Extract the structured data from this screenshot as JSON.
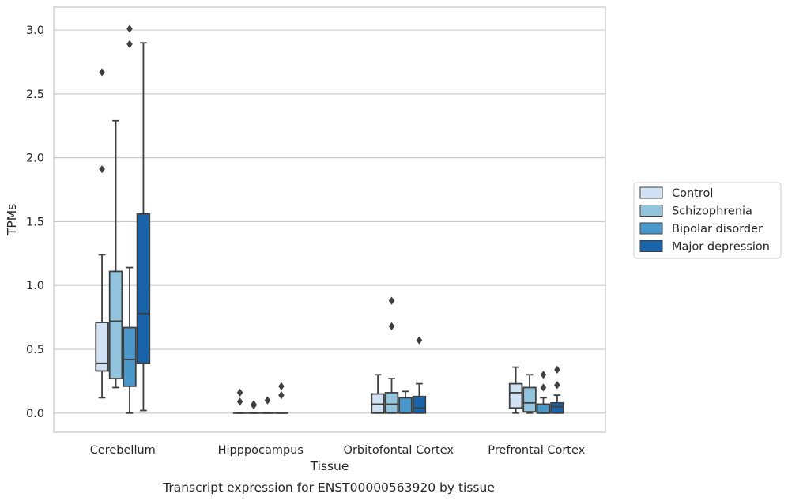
{
  "caption": "Transcript expression for ENST00000563920 by tissue",
  "colors": {
    "Control": "#cfe1f2",
    "Schizophrenia": "#93c4de",
    "Bipolar disorder": "#4a98c9",
    "Major depression": "#1764ab",
    "line": "#3f3f3f",
    "grid": "#cccccc"
  },
  "chart_data": {
    "type": "boxplot",
    "xlabel": "Tissue",
    "ylabel": "TPMs",
    "ylim": [
      -0.15,
      3.18
    ],
    "yticks": [
      0.0,
      0.5,
      1.0,
      1.5,
      2.0,
      2.5,
      3.0
    ],
    "ytick_labels": [
      "0.0",
      "0.5",
      "1.0",
      "1.5",
      "2.0",
      "2.5",
      "3.0"
    ],
    "grid": "horizontal",
    "legend_position": "right",
    "categories": [
      "Cerebellum",
      "Hipppocampus",
      "Orbitofontal Cortex",
      "Prefrontal Cortex"
    ],
    "series": [
      {
        "name": "Control",
        "boxes": [
          {
            "whislo": 0.12,
            "q1": 0.33,
            "med": 0.39,
            "q3": 0.71,
            "whishi": 1.24,
            "fliers": [
              1.91,
              2.67
            ]
          },
          {
            "whislo": 0.0,
            "q1": 0.0,
            "med": 0.0,
            "q3": 0.0,
            "whishi": 0.0,
            "fliers": [
              0.09,
              0.16
            ]
          },
          {
            "whislo": 0.0,
            "q1": 0.0,
            "med": 0.07,
            "q3": 0.15,
            "whishi": 0.3,
            "fliers": []
          },
          {
            "whislo": 0.0,
            "q1": 0.04,
            "med": 0.16,
            "q3": 0.23,
            "whishi": 0.36,
            "fliers": []
          }
        ]
      },
      {
        "name": "Schizophrenia",
        "boxes": [
          {
            "whislo": 0.2,
            "q1": 0.27,
            "med": 0.72,
            "q3": 1.11,
            "whishi": 2.29,
            "fliers": []
          },
          {
            "whislo": 0.0,
            "q1": 0.0,
            "med": 0.0,
            "q3": 0.0,
            "whishi": 0.0,
            "fliers": [
              0.06,
              0.07
            ]
          },
          {
            "whislo": 0.0,
            "q1": 0.0,
            "med": 0.07,
            "q3": 0.16,
            "whishi": 0.27,
            "fliers": [
              0.68,
              0.88
            ]
          },
          {
            "whislo": 0.0,
            "q1": 0.01,
            "med": 0.08,
            "q3": 0.2,
            "whishi": 0.3,
            "fliers": []
          }
        ]
      },
      {
        "name": "Bipolar disorder",
        "boxes": [
          {
            "whislo": 0.0,
            "q1": 0.21,
            "med": 0.42,
            "q3": 0.67,
            "whishi": 1.14,
            "fliers": [
              2.89,
              3.01
            ]
          },
          {
            "whislo": 0.0,
            "q1": 0.0,
            "med": 0.0,
            "q3": 0.0,
            "whishi": 0.0,
            "fliers": [
              0.1
            ]
          },
          {
            "whislo": 0.0,
            "q1": 0.0,
            "med": 0.0,
            "q3": 0.12,
            "whishi": 0.17,
            "fliers": []
          },
          {
            "whislo": 0.0,
            "q1": 0.0,
            "med": 0.0,
            "q3": 0.07,
            "whishi": 0.12,
            "fliers": [
              0.2,
              0.3
            ]
          }
        ]
      },
      {
        "name": "Major depression",
        "boxes": [
          {
            "whislo": 0.02,
            "q1": 0.39,
            "med": 0.78,
            "q3": 1.56,
            "whishi": 2.9,
            "fliers": []
          },
          {
            "whislo": 0.0,
            "q1": 0.0,
            "med": 0.0,
            "q3": 0.0,
            "whishi": 0.0,
            "fliers": [
              0.14,
              0.21
            ]
          },
          {
            "whislo": 0.0,
            "q1": 0.0,
            "med": 0.04,
            "q3": 0.13,
            "whishi": 0.23,
            "fliers": [
              0.57
            ]
          },
          {
            "whislo": 0.0,
            "q1": 0.0,
            "med": 0.05,
            "q3": 0.08,
            "whishi": 0.14,
            "fliers": [
              0.22,
              0.34
            ]
          }
        ]
      }
    ]
  }
}
